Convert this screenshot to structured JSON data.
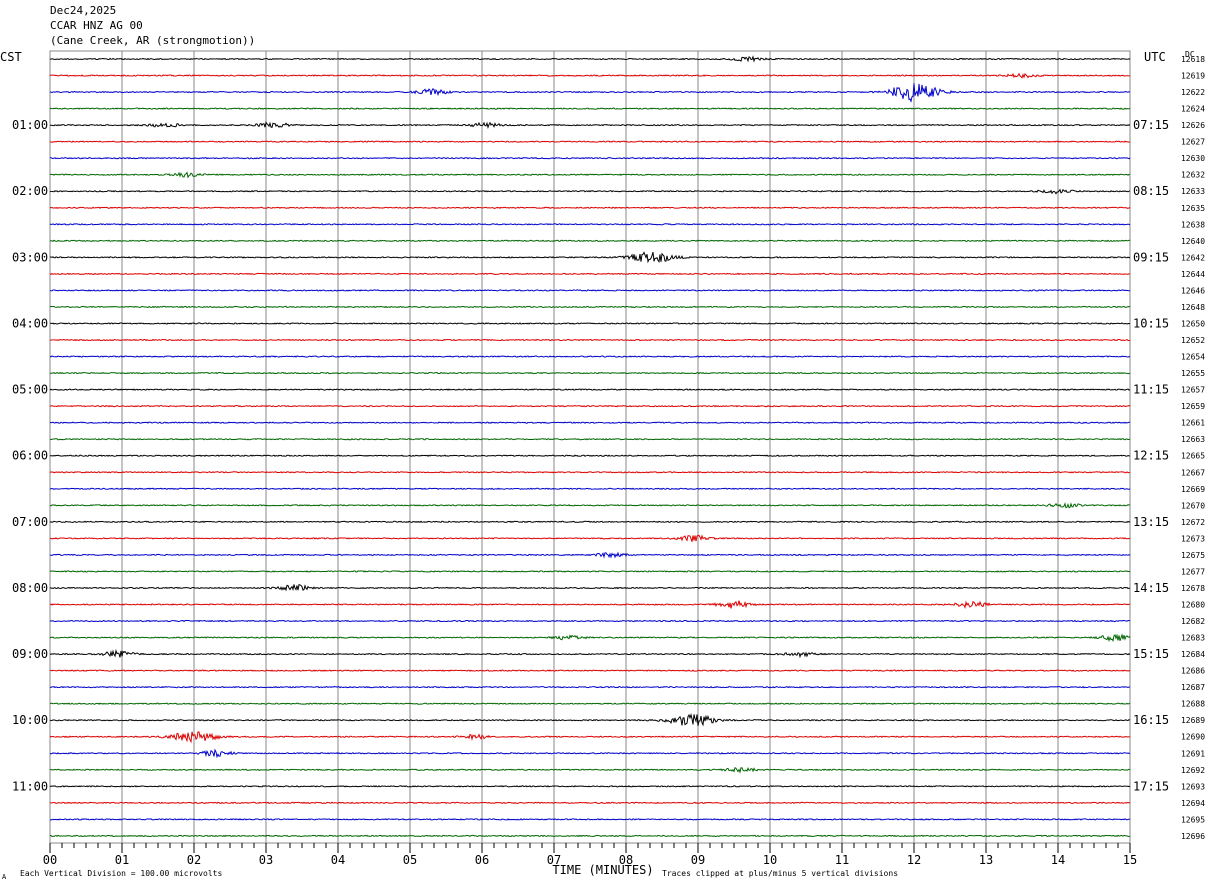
{
  "header": {
    "date": "Dec24,2025",
    "station": "CCAR HNZ AG 00",
    "location": "(Cane Creek, AR (strongmotion))"
  },
  "footer": {
    "scale_note": "Each Vertical Division =  100.00 microvolts",
    "clip_note": "Traces clipped at plus/minus 5 vertical divisions",
    "corner_mark": "A"
  },
  "chart_data": {
    "type": "line",
    "subtype": "helicorder",
    "xlabel": "TIME (MINUTES)",
    "x_ticks": [
      "00",
      "01",
      "02",
      "03",
      "04",
      "05",
      "06",
      "07",
      "08",
      "09",
      "10",
      "11",
      "12",
      "13",
      "14",
      "15"
    ],
    "xlim": [
      0,
      15
    ],
    "left_axis_label": "CST",
    "right_axis_label": "UTC",
    "dc_label": "DC",
    "left_hour_labels": [
      "01:00",
      "02:00",
      "03:00",
      "04:00",
      "05:00",
      "06:00",
      "07:00",
      "08:00",
      "09:00",
      "10:00",
      "11:00"
    ],
    "right_hour_labels": [
      "07:15",
      "08:15",
      "09:15",
      "10:15",
      "11:15",
      "12:15",
      "13:15",
      "14:15",
      "15:15",
      "16:15",
      "17:15"
    ],
    "line_colors": [
      "#000000",
      "#dd0000",
      "#0000cc",
      "#006600"
    ],
    "dc_offsets": [
      "12618",
      "12619",
      "12622",
      "12624",
      "12626",
      "12627",
      "12630",
      "12632",
      "12633",
      "12635",
      "12638",
      "12640",
      "12642",
      "12644",
      "12646",
      "12648",
      "12650",
      "12652",
      "12654",
      "12655",
      "12657",
      "12659",
      "12661",
      "12663",
      "12665",
      "12667",
      "12669",
      "12670",
      "12672",
      "12673",
      "12675",
      "12677",
      "12678",
      "12680",
      "12682",
      "12683",
      "12684",
      "12686",
      "12687",
      "12688",
      "12689",
      "12690",
      "12691",
      "12692",
      "12693",
      "12694",
      "12695",
      "12696"
    ],
    "events": [
      {
        "line": 0,
        "minute": 9.7,
        "amp": 2
      },
      {
        "line": 1,
        "minute": 13.5,
        "amp": 2
      },
      {
        "line": 2,
        "minute": 5.3,
        "amp": 3
      },
      {
        "line": 2,
        "minute": 12.0,
        "amp": 9
      },
      {
        "line": 4,
        "minute": 1.6,
        "amp": 2
      },
      {
        "line": 4,
        "minute": 3.1,
        "amp": 3
      },
      {
        "line": 4,
        "minute": 6.05,
        "amp": 2
      },
      {
        "line": 7,
        "minute": 1.9,
        "amp": 2
      },
      {
        "line": 8,
        "minute": 13.97,
        "amp": 2
      },
      {
        "line": 12,
        "minute": 8.35,
        "amp": 5
      },
      {
        "line": 27,
        "minute": 14.1,
        "amp": 2
      },
      {
        "line": 29,
        "minute": 8.95,
        "amp": 3
      },
      {
        "line": 30,
        "minute": 7.8,
        "amp": 2
      },
      {
        "line": 32,
        "minute": 3.4,
        "amp": 3
      },
      {
        "line": 33,
        "minute": 9.5,
        "amp": 4
      },
      {
        "line": 33,
        "minute": 12.8,
        "amp": 3
      },
      {
        "line": 35,
        "minute": 7.2,
        "amp": 2
      },
      {
        "line": 35,
        "minute": 14.8,
        "amp": 3
      },
      {
        "line": 36,
        "minute": 0.95,
        "amp": 3
      },
      {
        "line": 36,
        "minute": 10.4,
        "amp": 2
      },
      {
        "line": 40,
        "minute": 8.9,
        "amp": 6
      },
      {
        "line": 41,
        "minute": 2.0,
        "amp": 5
      },
      {
        "line": 41,
        "minute": 5.9,
        "amp": 2
      },
      {
        "line": 42,
        "minute": 2.3,
        "amp": 3
      },
      {
        "line": 43,
        "minute": 9.6,
        "amp": 2
      }
    ]
  }
}
